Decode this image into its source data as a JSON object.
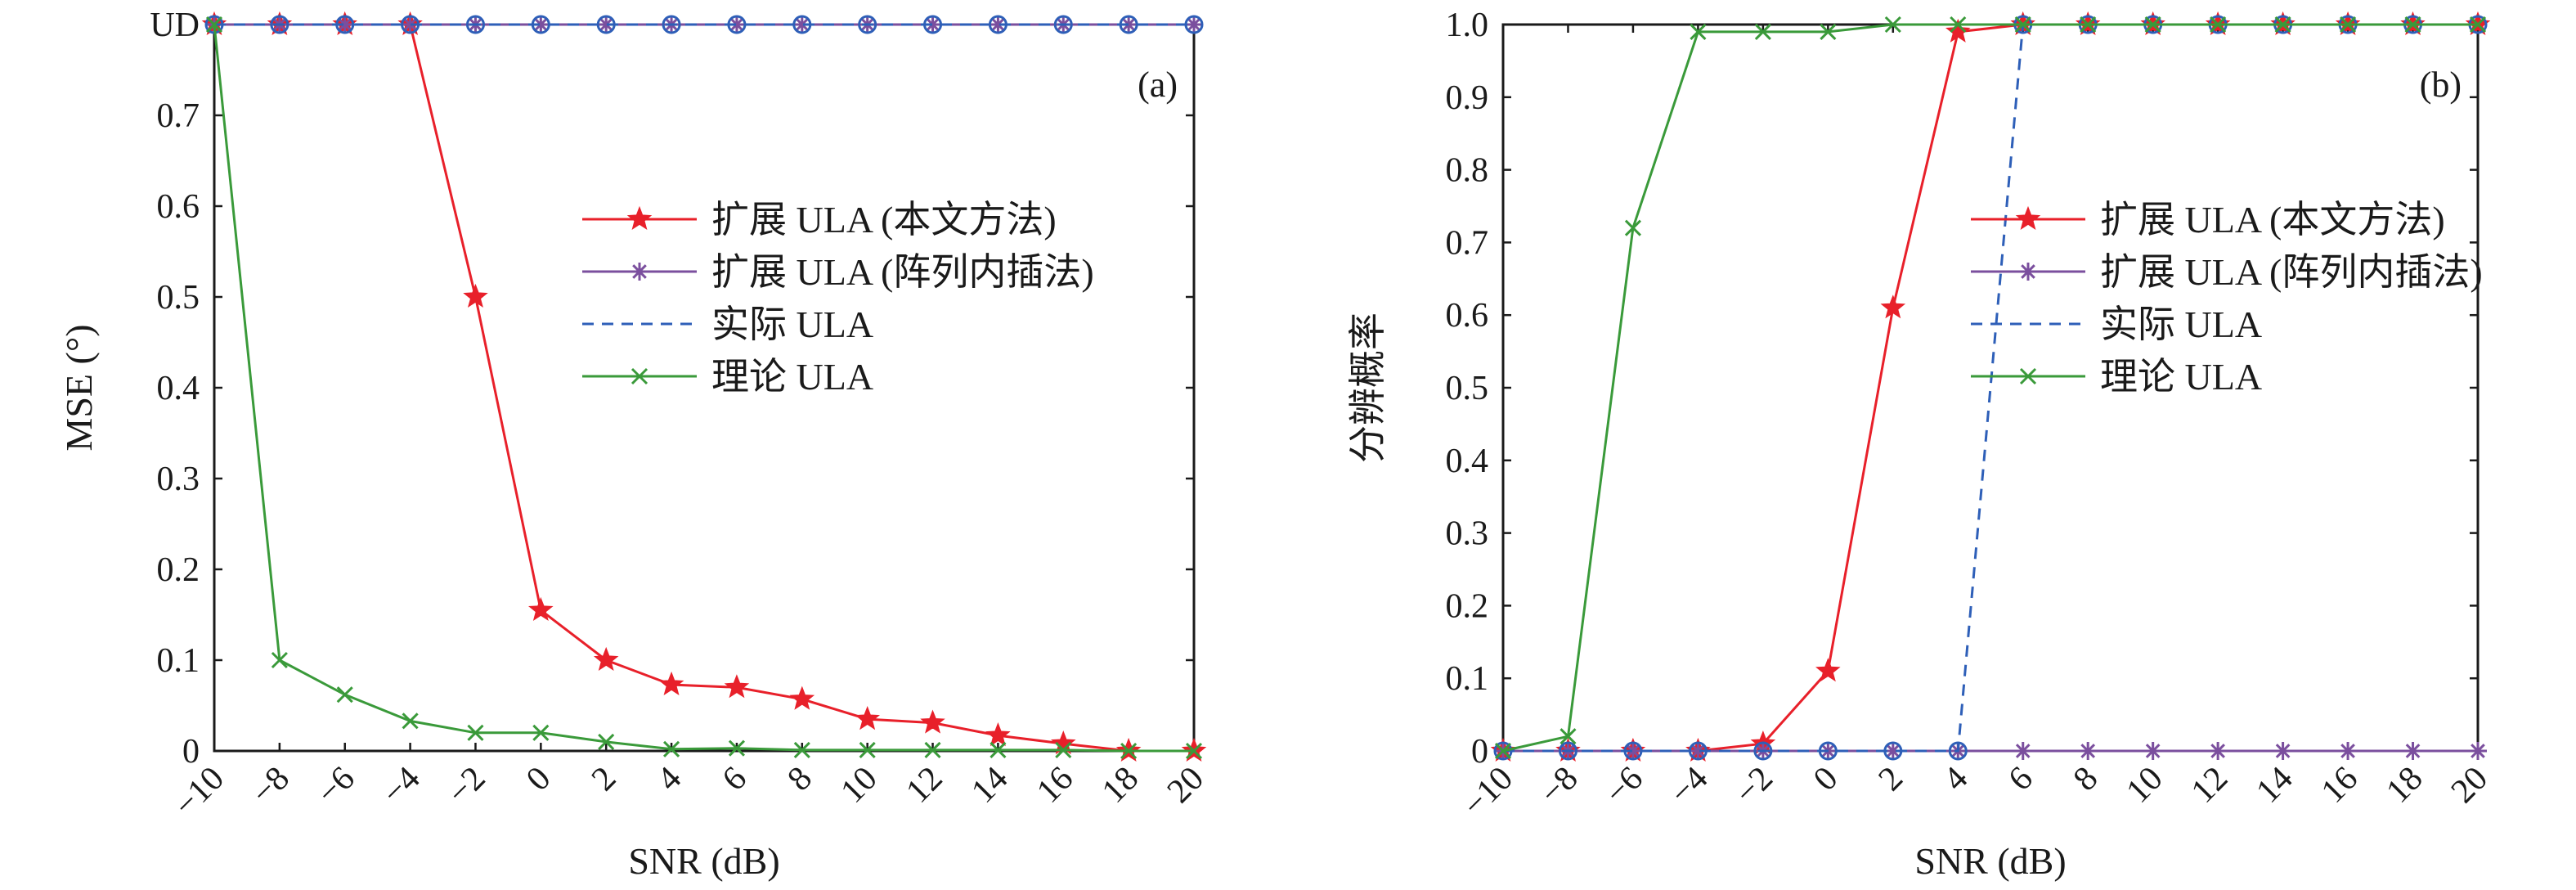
{
  "chart_data": [
    {
      "type": "line",
      "panel_label": "(a)",
      "xlabel": "SNR (dB)",
      "ylabel": "MSE (°)",
      "x": [
        -10,
        -8,
        -6,
        -4,
        -2,
        0,
        2,
        4,
        6,
        8,
        10,
        12,
        14,
        16,
        18,
        20
      ],
      "xlim": [
        -10,
        20
      ],
      "ylim": [
        0,
        0.8
      ],
      "y_tick_values": [
        0,
        0.1,
        0.2,
        0.3,
        0.4,
        0.5,
        0.6,
        0.7,
        0.8
      ],
      "y_tick_labels": [
        "0",
        "0.1",
        "0.2",
        "0.3",
        "0.4",
        "0.5",
        "0.6",
        "0.7",
        "UD"
      ],
      "x_tick_labels": [
        "−10",
        "−8",
        "−6",
        "−4",
        "−2",
        "0",
        "2",
        "4",
        "6",
        "8",
        "10",
        "12",
        "14",
        "16",
        "18",
        "20"
      ],
      "grid": false,
      "legend_position": "center-right",
      "series": [
        {
          "name": "扩展 ULA (本文方法)",
          "color": "#e8202a",
          "marker": "star",
          "dash": "solid",
          "values": [
            0.8,
            0.8,
            0.8,
            0.8,
            0.5,
            0.155,
            0.1,
            0.073,
            0.07,
            0.057,
            0.035,
            0.031,
            0.017,
            0.008,
            0.0,
            0.0
          ]
        },
        {
          "name": "扩展 ULA (阵列内插法)",
          "color": "#7b4f9e",
          "marker": "asterisk",
          "dash": "solid",
          "values": [
            0.8,
            0.8,
            0.8,
            0.8,
            0.8,
            0.8,
            0.8,
            0.8,
            0.8,
            0.8,
            0.8,
            0.8,
            0.8,
            0.8,
            0.8,
            0.8
          ]
        },
        {
          "name": "实际 ULA",
          "color": "#2e5fb8",
          "marker": "circle",
          "dash": "dashed",
          "values": [
            0.8,
            0.8,
            0.8,
            0.8,
            0.8,
            0.8,
            0.8,
            0.8,
            0.8,
            0.8,
            0.8,
            0.8,
            0.8,
            0.8,
            0.8,
            0.8
          ]
        },
        {
          "name": "理论 ULA",
          "color": "#3a9a3a",
          "marker": "x",
          "dash": "solid",
          "values": [
            0.8,
            0.1,
            0.062,
            0.033,
            0.02,
            0.02,
            0.01,
            0.002,
            0.003,
            0.001,
            0.001,
            0.001,
            0.001,
            0.001,
            0.0,
            0.0
          ]
        }
      ]
    },
    {
      "type": "line",
      "panel_label": "(b)",
      "xlabel": "SNR (dB)",
      "ylabel": "分辨概率",
      "x": [
        -10,
        -8,
        -6,
        -4,
        -2,
        0,
        2,
        4,
        6,
        8,
        10,
        12,
        14,
        16,
        18,
        20
      ],
      "xlim": [
        -10,
        20
      ],
      "ylim": [
        0,
        1.0
      ],
      "y_tick_values": [
        0,
        0.1,
        0.2,
        0.3,
        0.4,
        0.5,
        0.6,
        0.7,
        0.8,
        0.9,
        1.0
      ],
      "y_tick_labels": [
        "0",
        "0.1",
        "0.2",
        "0.3",
        "0.4",
        "0.5",
        "0.6",
        "0.7",
        "0.8",
        "0.9",
        "1.0"
      ],
      "x_tick_labels": [
        "−10",
        "−8",
        "−6",
        "−4",
        "−2",
        "0",
        "2",
        "4",
        "6",
        "8",
        "10",
        "12",
        "14",
        "16",
        "18",
        "20"
      ],
      "grid": false,
      "legend_position": "center-right",
      "series": [
        {
          "name": "扩展 ULA (本文方法)",
          "color": "#e8202a",
          "marker": "star",
          "dash": "solid",
          "values": [
            0,
            0,
            0,
            0,
            0.01,
            0.11,
            0.61,
            0.99,
            1.0,
            1.0,
            1.0,
            1.0,
            1.0,
            1.0,
            1.0,
            1.0
          ]
        },
        {
          "name": "扩展 ULA (阵列内插法)",
          "color": "#7b4f9e",
          "marker": "asterisk",
          "dash": "solid",
          "values": [
            0,
            0,
            0,
            0,
            0,
            0,
            0,
            0,
            0,
            0,
            0,
            0,
            0,
            0,
            0,
            0
          ]
        },
        {
          "name": "实际 ULA",
          "color": "#2e5fb8",
          "marker": "circle",
          "dash": "dashed",
          "values": [
            0,
            0,
            0,
            0,
            0,
            0,
            0,
            0,
            1.0,
            1.0,
            1.0,
            1.0,
            1.0,
            1.0,
            1.0,
            1.0
          ]
        },
        {
          "name": "理论 ULA",
          "color": "#3a9a3a",
          "marker": "x",
          "dash": "solid",
          "values": [
            0,
            0.02,
            0.72,
            0.99,
            0.99,
            0.99,
            1.0,
            1.0,
            1.0,
            1.0,
            1.0,
            1.0,
            1.0,
            1.0,
            1.0,
            1.0
          ]
        }
      ]
    }
  ]
}
